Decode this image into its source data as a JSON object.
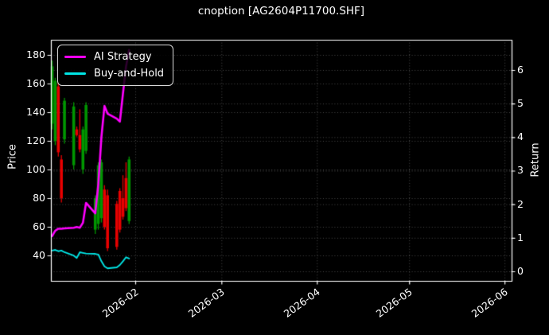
{
  "title": "cnoption [AG2604P11700.SHF]",
  "legend": {
    "position": "upper-left",
    "items": [
      {
        "label": "AI Strategy",
        "color": "#ff00ff"
      },
      {
        "label": "Buy-and-Hold",
        "color": "#00e5e5"
      }
    ]
  },
  "chart_data": {
    "type": "candlestick+line",
    "title": "cnoption [AG2604P11700.SHF]",
    "grid": true,
    "legend_position": "upper left",
    "x_axis": {
      "ticks": [
        {
          "label": "2026-02",
          "d": 31
        },
        {
          "label": "2026-03",
          "d": 59
        },
        {
          "label": "2026-04",
          "d": 90
        },
        {
          "label": "2026-05",
          "d": 120
        },
        {
          "label": "2026-06",
          "d": 151
        }
      ]
    },
    "price_axis": {
      "label": "Price",
      "ticks": [
        40,
        60,
        80,
        100,
        120,
        140,
        160,
        180
      ],
      "range": [
        22,
        191
      ]
    },
    "return_axis": {
      "label": "Return",
      "ticks": [
        0,
        1,
        2,
        3,
        4,
        5,
        6
      ],
      "range": [
        -0.29,
        6.9
      ]
    },
    "candles": [
      {
        "date": "2026-01-05",
        "d": 4,
        "o": 132,
        "h": 176,
        "l": 128,
        "c": 172
      },
      {
        "date": "2026-01-06",
        "d": 5,
        "o": 120,
        "h": 164,
        "l": 117,
        "c": 162
      },
      {
        "date": "2026-01-07",
        "d": 6,
        "o": 158,
        "h": 161,
        "l": 109,
        "c": 112
      },
      {
        "date": "2026-01-08",
        "d": 7,
        "o": 107,
        "h": 110,
        "l": 77,
        "c": 80
      },
      {
        "date": "2026-01-09",
        "d": 8,
        "o": 121,
        "h": 150,
        "l": 118,
        "c": 148
      },
      {
        "date": "2026-01-12",
        "d": 11,
        "o": 103,
        "h": 147,
        "l": 100,
        "c": 144
      },
      {
        "date": "2026-01-13",
        "d": 12,
        "o": 128,
        "h": 130,
        "l": 123,
        "c": 124
      },
      {
        "date": "2026-01-14",
        "d": 13,
        "o": 124,
        "h": 142,
        "l": 112,
        "c": 114
      },
      {
        "date": "2026-01-15",
        "d": 14,
        "o": 100,
        "h": 130,
        "l": 97,
        "c": 128
      },
      {
        "date": "2026-01-16",
        "d": 15,
        "o": 113,
        "h": 147,
        "l": 111,
        "c": 145
      },
      {
        "date": "2026-01-19",
        "d": 18,
        "o": 58,
        "h": 82,
        "l": 55,
        "c": 80
      },
      {
        "date": "2026-01-20",
        "d": 19,
        "o": 62,
        "h": 105,
        "l": 58,
        "c": 103
      },
      {
        "date": "2026-01-21",
        "d": 20,
        "o": 66,
        "h": 107,
        "l": 63,
        "c": 105
      },
      {
        "date": "2026-01-22",
        "d": 21,
        "o": 86,
        "h": 89,
        "l": 58,
        "c": 60
      },
      {
        "date": "2026-01-23",
        "d": 22,
        "o": 82,
        "h": 86,
        "l": 43,
        "c": 45
      },
      {
        "date": "2026-01-26",
        "d": 25,
        "o": 76,
        "h": 78,
        "l": 44,
        "c": 46
      },
      {
        "date": "2026-01-27",
        "d": 26,
        "o": 85,
        "h": 87,
        "l": 56,
        "c": 58
      },
      {
        "date": "2026-01-28",
        "d": 27,
        "o": 80,
        "h": 96,
        "l": 65,
        "c": 67
      },
      {
        "date": "2026-01-29",
        "d": 28,
        "o": 94,
        "h": 105,
        "l": 71,
        "c": 73
      },
      {
        "date": "2026-01-30",
        "d": 29,
        "o": 64,
        "h": 109,
        "l": 62,
        "c": 107
      }
    ],
    "series": [
      {
        "name": "AI Strategy",
        "axis": "return",
        "color": "#ff00ff",
        "width": 2.6,
        "points": [
          {
            "d": 4,
            "v": 1.05
          },
          {
            "d": 5,
            "v": 1.21
          },
          {
            "d": 6,
            "v": 1.27
          },
          {
            "d": 7,
            "v": 1.27
          },
          {
            "d": 8,
            "v": 1.28
          },
          {
            "d": 11,
            "v": 1.3
          },
          {
            "d": 12,
            "v": 1.32
          },
          {
            "d": 13,
            "v": 1.3
          },
          {
            "d": 14,
            "v": 1.45
          },
          {
            "d": 15,
            "v": 2.04
          },
          {
            "d": 18,
            "v": 1.73
          },
          {
            "d": 19,
            "v": 2.6
          },
          {
            "d": 20,
            "v": 4.0
          },
          {
            "d": 21,
            "v": 4.93
          },
          {
            "d": 22,
            "v": 4.7
          },
          {
            "d": 25,
            "v": 4.55
          },
          {
            "d": 26,
            "v": 4.46
          },
          {
            "d": 27,
            "v": 5.3
          },
          {
            "d": 28,
            "v": 6.1
          },
          {
            "d": 29,
            "v": 6.6
          }
        ]
      },
      {
        "name": "Buy-and-Hold",
        "axis": "return",
        "color": "#00e5e5",
        "width": 1.9,
        "points": [
          {
            "d": 4,
            "v": 0.62
          },
          {
            "d": 5,
            "v": 0.64
          },
          {
            "d": 6,
            "v": 0.6
          },
          {
            "d": 7,
            "v": 0.62
          },
          {
            "d": 8,
            "v": 0.57
          },
          {
            "d": 11,
            "v": 0.47
          },
          {
            "d": 12,
            "v": 0.4
          },
          {
            "d": 13,
            "v": 0.57
          },
          {
            "d": 14,
            "v": 0.55
          },
          {
            "d": 15,
            "v": 0.53
          },
          {
            "d": 18,
            "v": 0.52
          },
          {
            "d": 19,
            "v": 0.5
          },
          {
            "d": 20,
            "v": 0.3
          },
          {
            "d": 21,
            "v": 0.15
          },
          {
            "d": 22,
            "v": 0.09
          },
          {
            "d": 25,
            "v": 0.12
          },
          {
            "d": 26,
            "v": 0.19
          },
          {
            "d": 27,
            "v": 0.3
          },
          {
            "d": 28,
            "v": 0.42
          },
          {
            "d": 29,
            "v": 0.38
          }
        ]
      }
    ],
    "colors": {
      "up": "#009600",
      "down": "#e80000",
      "background": "#000000",
      "text": "#ffffff",
      "grid": "#4a4a4a",
      "spine": "#ffffff"
    }
  }
}
